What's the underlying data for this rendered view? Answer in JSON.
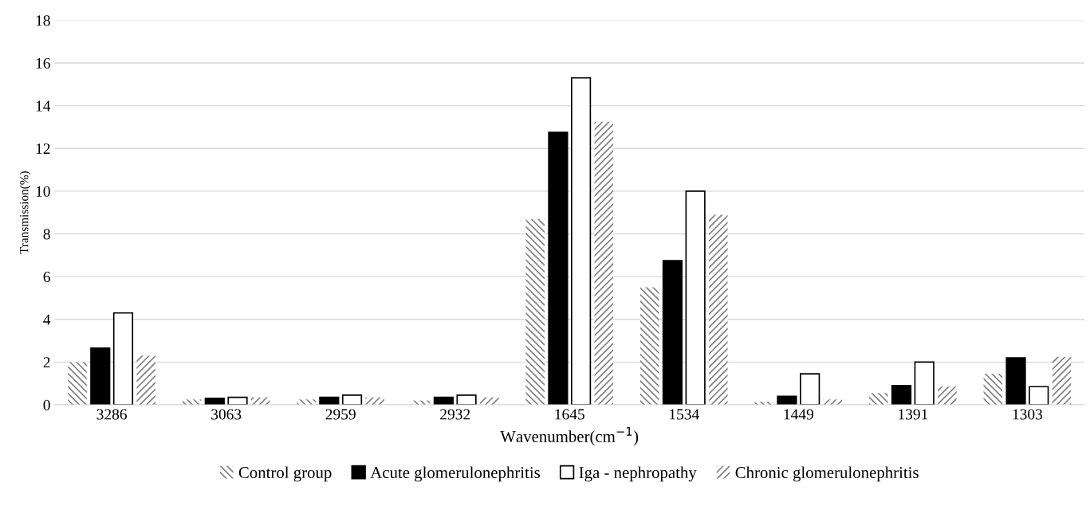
{
  "chart_data": {
    "type": "bar",
    "xlabel": "Wavenumber(cm$^{−1}$)",
    "ylabel": "Transmission(%)",
    "categories": [
      "3286",
      "3063",
      "2959",
      "2932",
      "1645",
      "1534",
      "1449",
      "1391",
      "1303"
    ],
    "series": [
      {
        "name": "Control group",
        "color": "#808080",
        "values": [
          2.0,
          0.25,
          0.25,
          0.2,
          8.7,
          5.5,
          0.15,
          0.55,
          1.45
        ]
      },
      {
        "name": "Acute glomerulonephritis",
        "color": "#000000",
        "values": [
          2.65,
          0.3,
          0.35,
          0.35,
          12.75,
          6.75,
          0.4,
          0.9,
          2.2
        ]
      },
      {
        "name": "Iga - nephropathy",
        "color": "#ffffff",
        "values": [
          4.3,
          0.35,
          0.45,
          0.45,
          15.3,
          10.0,
          1.45,
          2.0,
          0.85
        ]
      },
      {
        "name": "Chronic glomerulonephritis",
        "color": "#808080",
        "values": [
          2.3,
          0.35,
          0.35,
          0.35,
          13.25,
          8.9,
          0.25,
          0.85,
          2.25
        ]
      }
    ],
    "ylim": [
      0,
      18
    ],
    "yticks": [
      0,
      2,
      4,
      6,
      8,
      10,
      12,
      14,
      16,
      18
    ],
    "grid": "y",
    "legend": "bottom"
  }
}
